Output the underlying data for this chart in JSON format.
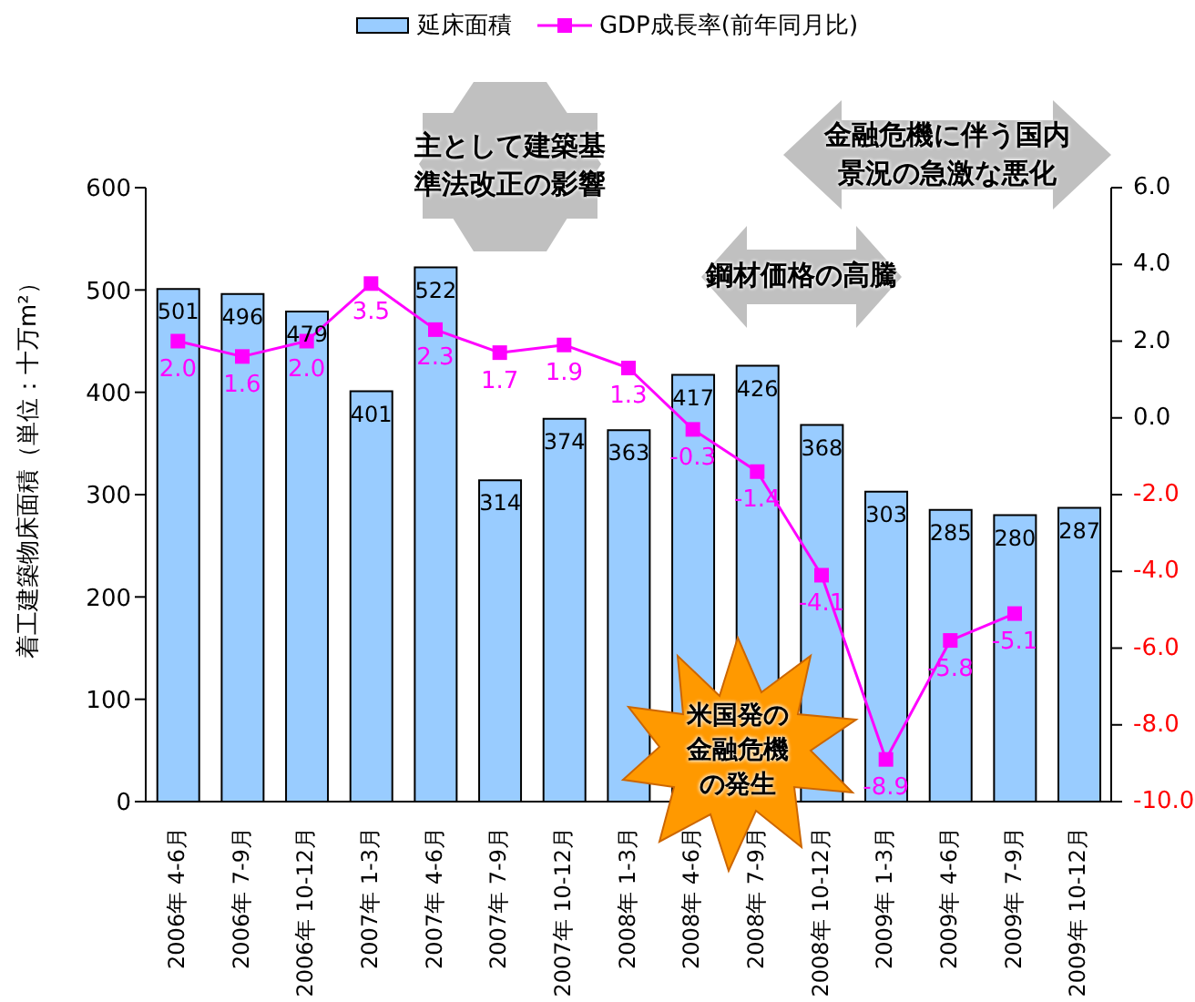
{
  "chart_data": {
    "type": "bar",
    "categories": [
      "2006年 4-6月",
      "2006年 7-9月",
      "2006年 10-12月",
      "2007年 1-3月",
      "2007年 4-6月",
      "2007年 7-9月",
      "2007年 10-12月",
      "2008年 1-3月",
      "2008年 4-6月",
      "2008年 7-9月",
      "2008年 10-12月",
      "2009年 1-3月",
      "2009年 4-6月",
      "2009年 7-9月",
      "2009年 10-12月"
    ],
    "series": [
      {
        "name": "延床面積",
        "color": "#99ccff",
        "values": [
          501,
          496,
          479,
          401,
          522,
          314,
          374,
          363,
          417,
          426,
          368,
          303,
          285,
          280,
          287
        ]
      },
      {
        "name": "GDP成長率(前年同月比)",
        "type": "line",
        "axis": "y2",
        "color": "#ff00ff",
        "marker": "square",
        "values": [
          2.0,
          1.6,
          2.0,
          3.5,
          2.3,
          1.7,
          1.9,
          1.3,
          -0.3,
          -1.4,
          -4.1,
          -8.9,
          -5.8,
          -5.1,
          null
        ],
        "value_labels": [
          "2.0",
          "1.6",
          "2.0",
          "3.5",
          "2.3",
          "1.7",
          "1.9",
          "1.3",
          "-0.3",
          "-1.4",
          "-4.1",
          "-8.9",
          "-5.8",
          "-5.1",
          null
        ]
      }
    ],
    "ylabel": "着工建築物床面積（単位：十万m²）",
    "ylim": [
      0,
      600
    ],
    "yticks": [
      0,
      100,
      200,
      300,
      400,
      500,
      600
    ],
    "y2lim": [
      -10,
      6
    ],
    "y2ticks": [
      {
        "value": -10,
        "label": "-10.0"
      },
      {
        "value": -8,
        "label": "-8.0"
      },
      {
        "value": -6,
        "label": "-6.0"
      },
      {
        "value": -4,
        "label": "-4.0"
      },
      {
        "value": -2,
        "label": "-2.0"
      },
      {
        "value": 0,
        "label": "0.0"
      },
      {
        "value": 2,
        "label": "2.0"
      },
      {
        "value": 4,
        "label": "4.0"
      },
      {
        "value": 6,
        "label": "6.0"
      }
    ],
    "data_labels": true,
    "grid": false,
    "legend": "top",
    "annotations": [
      "主として建築基準法改正の影響",
      "鋼材価格の高騰",
      "金融危機に伴う国内景況の急激な悪化",
      "米国発の金融危機の発生"
    ]
  }
}
